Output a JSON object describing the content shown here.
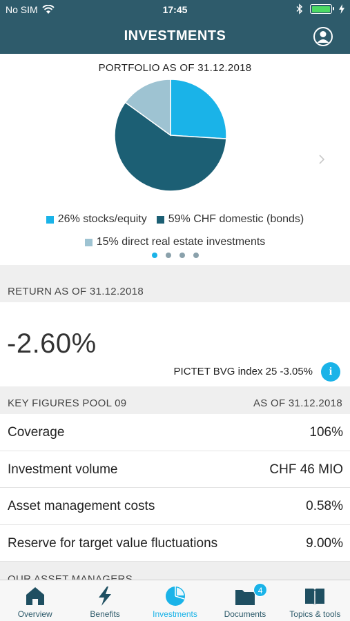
{
  "status_bar": {
    "carrier": "No SIM",
    "time": "17:45"
  },
  "nav": {
    "title": "INVESTMENTS",
    "profile_icon": "user-circle-icon"
  },
  "portfolio": {
    "title": "PORTFOLIO AS OF 31.12.2018",
    "legend": [
      {
        "label": "26% stocks/equity",
        "color": "#1ab3e8"
      },
      {
        "label": "59% CHF domestic (bonds)",
        "color": "#1c5f74"
      },
      {
        "label": "15% direct real estate investments",
        "color": "#9ec3d2"
      }
    ],
    "page_count": 4,
    "active_page": 0
  },
  "chart_data": {
    "type": "pie",
    "categories": [
      "stocks/equity",
      "CHF domestic (bonds)",
      "direct real estate investments"
    ],
    "values": [
      26,
      59,
      15
    ],
    "colors": [
      "#1ab3e8",
      "#1c5f74",
      "#9ec3d2"
    ],
    "title": "PORTFOLIO AS OF 31.12.2018"
  },
  "return_section": {
    "header": "RETURN AS OF 31.12.2018",
    "value": "-2.60%",
    "benchmark": "PICTET BVG index 25 -3.05%",
    "info_label": "i"
  },
  "key_figures": {
    "header_left": "KEY FIGURES POOL 09",
    "header_right": "AS OF 31.12.2018",
    "rows": [
      {
        "label": "Coverage",
        "value": "106%"
      },
      {
        "label": "Investment volume",
        "value": "CHF 46 MIO"
      },
      {
        "label": "Asset management costs",
        "value": "0.58%"
      },
      {
        "label": "Reserve for target value fluctuations",
        "value": "9.00%"
      }
    ]
  },
  "managers_section": {
    "header": "OUR ASSET MANAGERS"
  },
  "tabbar": {
    "tabs": [
      {
        "label": "Overview",
        "icon": "home-icon"
      },
      {
        "label": "Benefits",
        "icon": "lightning-icon"
      },
      {
        "label": "Investments",
        "icon": "pie-chart-icon"
      },
      {
        "label": "Documents",
        "icon": "folder-icon",
        "badge": "4"
      },
      {
        "label": "Topics & tools",
        "icon": "book-icon"
      }
    ],
    "active": "Investments"
  }
}
